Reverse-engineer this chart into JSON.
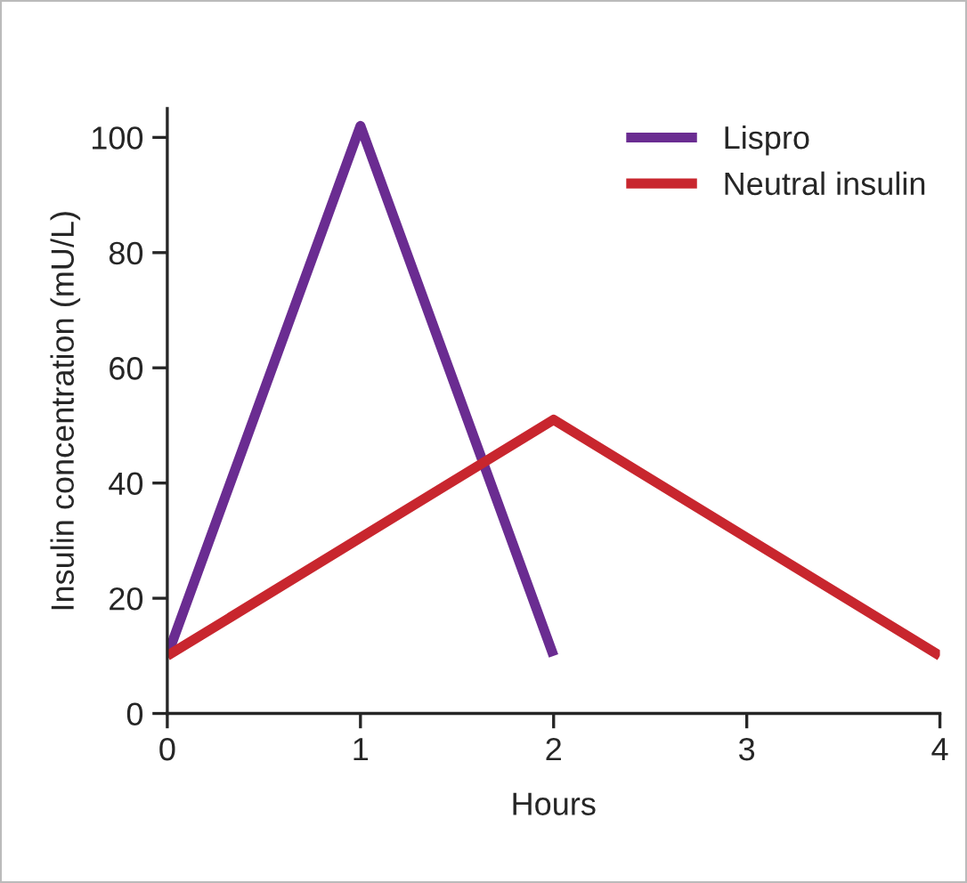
{
  "chart_data": {
    "type": "line",
    "xlabel": "Hours",
    "ylabel": "Insulin concentration (mU/L)",
    "series": [
      {
        "name": "Lispro",
        "color": "#6a2c91",
        "x": [
          0,
          1,
          2
        ],
        "values": [
          10,
          102,
          10
        ]
      },
      {
        "name": "Neutral insulin",
        "color": "#c8262e",
        "x": [
          0,
          2,
          4
        ],
        "values": [
          10,
          51,
          10
        ]
      }
    ],
    "xlim": [
      0,
      4
    ],
    "xticks": [
      0,
      1,
      2,
      3,
      4
    ],
    "ylim": [
      0,
      105
    ],
    "yticks": [
      0,
      20,
      40,
      60,
      80,
      100
    ],
    "grid": false,
    "legend": "top right",
    "marker": "none",
    "line_style": "solid"
  }
}
